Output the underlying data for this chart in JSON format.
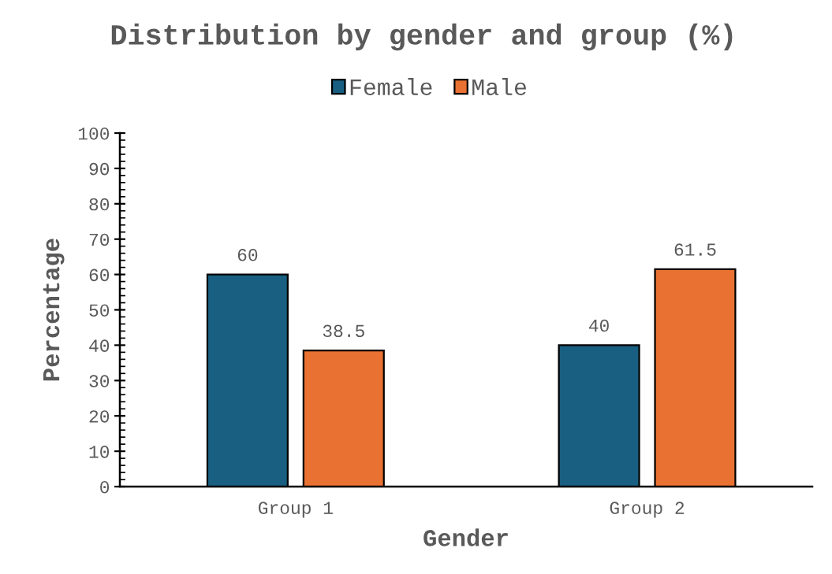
{
  "chart_data": {
    "type": "bar",
    "title": "Distribution by gender and group (%)",
    "xlabel": "Gender",
    "ylabel": "Percentage",
    "categories": [
      "Group 1",
      "Group 2"
    ],
    "series": [
      {
        "name": "Female",
        "color": "#195f82",
        "values": [
          60,
          40
        ]
      },
      {
        "name": "Male",
        "color": "#e97132",
        "values": [
          38.5,
          61.5
        ]
      }
    ],
    "ylim": [
      0,
      100
    ],
    "yticks": [
      0,
      10,
      20,
      30,
      40,
      50,
      60,
      70,
      80,
      90,
      100
    ],
    "data_labels": true,
    "legend": "top"
  }
}
